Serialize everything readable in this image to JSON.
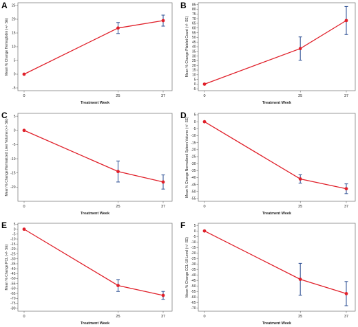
{
  "chart_data": [
    {
      "panel": "A",
      "type": "line",
      "x": [
        0,
        25,
        37
      ],
      "y": [
        0,
        16.8,
        19.5
      ],
      "se": [
        0,
        2,
        2
      ],
      "xlabel": "Treatment Week",
      "ylabel": "Mean % Change Hemoglobin (+/- SE)",
      "xticks": [
        0,
        25,
        37
      ],
      "ylim": [
        -6,
        26
      ],
      "yticks": [
        -5,
        0,
        5,
        10,
        15,
        20,
        25
      ],
      "line_color": "#e0202a",
      "marker_color": "#e0202a",
      "errorbar_color": "#3a5a9a"
    },
    {
      "panel": "B",
      "type": "line",
      "x": [
        0,
        25,
        37
      ],
      "y": [
        0,
        38,
        68
      ],
      "se": [
        0,
        12.5,
        15
      ],
      "xlabel": "Treatment Week",
      "ylabel": "Mean % Change Platelet Count (+/- SE)",
      "xticks": [
        0,
        25,
        37
      ],
      "ylim": [
        -7,
        87
      ],
      "yticks": [
        -5,
        0,
        5,
        10,
        15,
        20,
        25,
        30,
        35,
        40,
        45,
        50,
        55,
        60,
        65,
        70,
        75,
        80,
        85
      ],
      "line_color": "#e0202a",
      "marker_color": "#e0202a",
      "errorbar_color": "#3a5a9a"
    },
    {
      "panel": "C",
      "type": "line",
      "x": [
        0,
        25,
        37
      ],
      "y": [
        0,
        -14.5,
        -18.2
      ],
      "se": [
        0,
        3.7,
        2.5
      ],
      "xlabel": "Treatment Week",
      "ylabel": "Mean % Change Normalized Liver Volume (+/- SE)",
      "xticks": [
        0,
        25,
        37
      ],
      "ylim": [
        -25,
        6
      ],
      "yticks": [
        5,
        0,
        -5,
        -10,
        -15,
        -20
      ],
      "line_color": "#e0202a",
      "marker_color": "#e0202a",
      "errorbar_color": "#3a5a9a"
    },
    {
      "panel": "D",
      "type": "line",
      "x": [
        0,
        25,
        37
      ],
      "y": [
        0,
        -41,
        -48
      ],
      "se": [
        0,
        3,
        3.5
      ],
      "xlabel": "Treatment Week",
      "ylabel": "Mean % Change Normalized Spleen Volume (+/- SE)",
      "xticks": [
        0,
        25,
        37
      ],
      "ylim": [
        -57,
        6
      ],
      "yticks": [
        5,
        0,
        -5,
        -10,
        -15,
        -20,
        -25,
        -30,
        -35,
        -40,
        -45,
        -50,
        -55
      ],
      "line_color": "#e0202a",
      "marker_color": "#e0202a",
      "errorbar_color": "#3a5a9a"
    },
    {
      "panel": "E",
      "type": "line",
      "x": [
        0,
        25,
        37
      ],
      "y": [
        0,
        -57,
        -67
      ],
      "se": [
        0,
        6,
        4
      ],
      "xlabel": "Treatment Week",
      "ylabel": "Mean % Change PCL (+/- SE)",
      "xticks": [
        0,
        25,
        37
      ],
      "ylim": [
        -83,
        6
      ],
      "yticks": [
        5,
        0,
        -5,
        -10,
        -15,
        -20,
        -25,
        -30,
        -35,
        -40,
        -45,
        -50,
        -55,
        -60,
        -65,
        -70,
        -75,
        -80
      ],
      "line_color": "#e0202a",
      "marker_color": "#e0202a",
      "errorbar_color": "#3a5a9a"
    },
    {
      "panel": "F",
      "type": "line",
      "x": [
        0,
        25,
        37
      ],
      "y": [
        0,
        -44,
        -57
      ],
      "se": [
        0,
        14.5,
        11
      ],
      "xlabel": "Treatment Week",
      "ylabel": "Mean % Change CCL-18 Level (+/- SE)",
      "xticks": [
        0,
        25,
        37
      ],
      "ylim": [
        -73,
        7
      ],
      "yticks": [
        5,
        0,
        -5,
        -10,
        -15,
        -20,
        -25,
        -30,
        -35,
        -40,
        -45,
        -50,
        -55,
        -60,
        -65,
        -70
      ],
      "line_color": "#e0202a",
      "marker_color": "#e0202a",
      "errorbar_color": "#3a5a9a"
    }
  ]
}
